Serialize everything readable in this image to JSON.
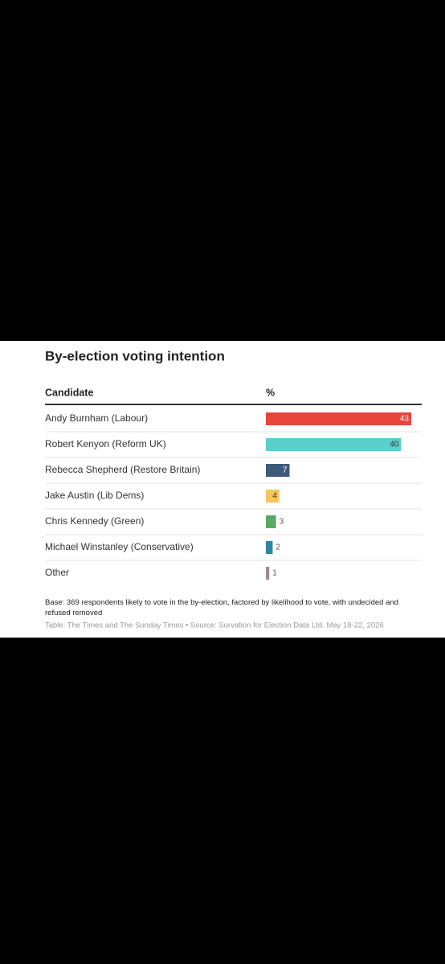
{
  "chart_data": {
    "type": "bar",
    "title": "By-election voting intention",
    "column_headers": [
      "Candidate",
      "%"
    ],
    "categories": [
      "Andy Burnham (Labour)",
      "Robert Kenyon (Reform UK)",
      "Rebecca Shepherd (Restore Britain)",
      "Jake Austin (Lib Dems)",
      "Chris Kennedy (Green)",
      "Michael Winstanley (Conservative)",
      "Other"
    ],
    "values": [
      43,
      40,
      7,
      4,
      3,
      2,
      1
    ],
    "colors": [
      "#e8453c",
      "#5bcfc9",
      "#3d5a7a",
      "#f6c560",
      "#5aa865",
      "#2c87a0",
      "#9e8a93"
    ],
    "note": "Base: 369 respondents likely to vote in the by-election, factored by likelihood to vote, with undecided and refused removed",
    "source": "Table: The Times and The Sunday Times • Source: Survation for Election Data Ltd. May 18-22, 2026"
  }
}
